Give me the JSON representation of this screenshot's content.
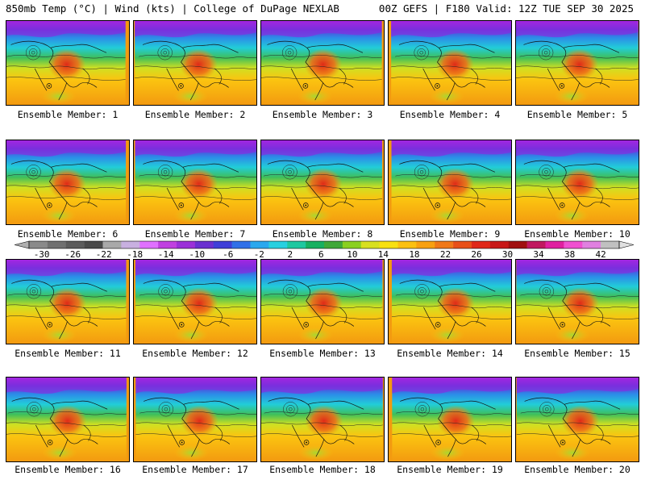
{
  "header": {
    "left": "850mb Temp (°C) | Wind (kts) | College of DuPage NEXLAB",
    "right": "00Z GEFS | F180 Valid: 12Z TUE SEP 30 2025"
  },
  "members": [
    {
      "label": "Ensemble Member: 1"
    },
    {
      "label": "Ensemble Member: 2"
    },
    {
      "label": "Ensemble Member: 3"
    },
    {
      "label": "Ensemble Member: 4"
    },
    {
      "label": "Ensemble Member: 5"
    },
    {
      "label": "Ensemble Member: 6"
    },
    {
      "label": "Ensemble Member: 7"
    },
    {
      "label": "Ensemble Member: 8"
    },
    {
      "label": "Ensemble Member: 9"
    },
    {
      "label": "Ensemble Member: 10"
    },
    {
      "label": "Ensemble Member: 11"
    },
    {
      "label": "Ensemble Member: 12"
    },
    {
      "label": "Ensemble Member: 13"
    },
    {
      "label": "Ensemble Member: 14"
    },
    {
      "label": "Ensemble Member: 15"
    },
    {
      "label": "Ensemble Member: 16"
    },
    {
      "label": "Ensemble Member: 17"
    },
    {
      "label": "Ensemble Member: 18"
    },
    {
      "label": "Ensemble Member: 19"
    },
    {
      "label": "Ensemble Member: 20"
    }
  ],
  "colorbar": {
    "tick_labels": [
      "-30",
      "-26",
      "-22",
      "-18",
      "-14",
      "-10",
      "-6",
      "-2",
      "2",
      "6",
      "10",
      "14",
      "18",
      "22",
      "26",
      "30",
      "34",
      "38",
      "42"
    ],
    "colors": [
      "#8a8a8a",
      "#707070",
      "#5c5c5c",
      "#4a4a4a",
      "#a9a9a9",
      "#c8b0e0",
      "#e070ff",
      "#c040e0",
      "#9b30d8",
      "#6a30d0",
      "#3f3fd8",
      "#3070e8",
      "#2aa8ee",
      "#28d0e0",
      "#1fc8a0",
      "#18b060",
      "#40a838",
      "#8ad020",
      "#d8e020",
      "#f8e010",
      "#fbc010",
      "#f8a010",
      "#f07818",
      "#e85018",
      "#e02818",
      "#c81818",
      "#a01010",
      "#c01860",
      "#e020a0",
      "#f050d0",
      "#e080e0",
      "#c0c0c0"
    ]
  }
}
